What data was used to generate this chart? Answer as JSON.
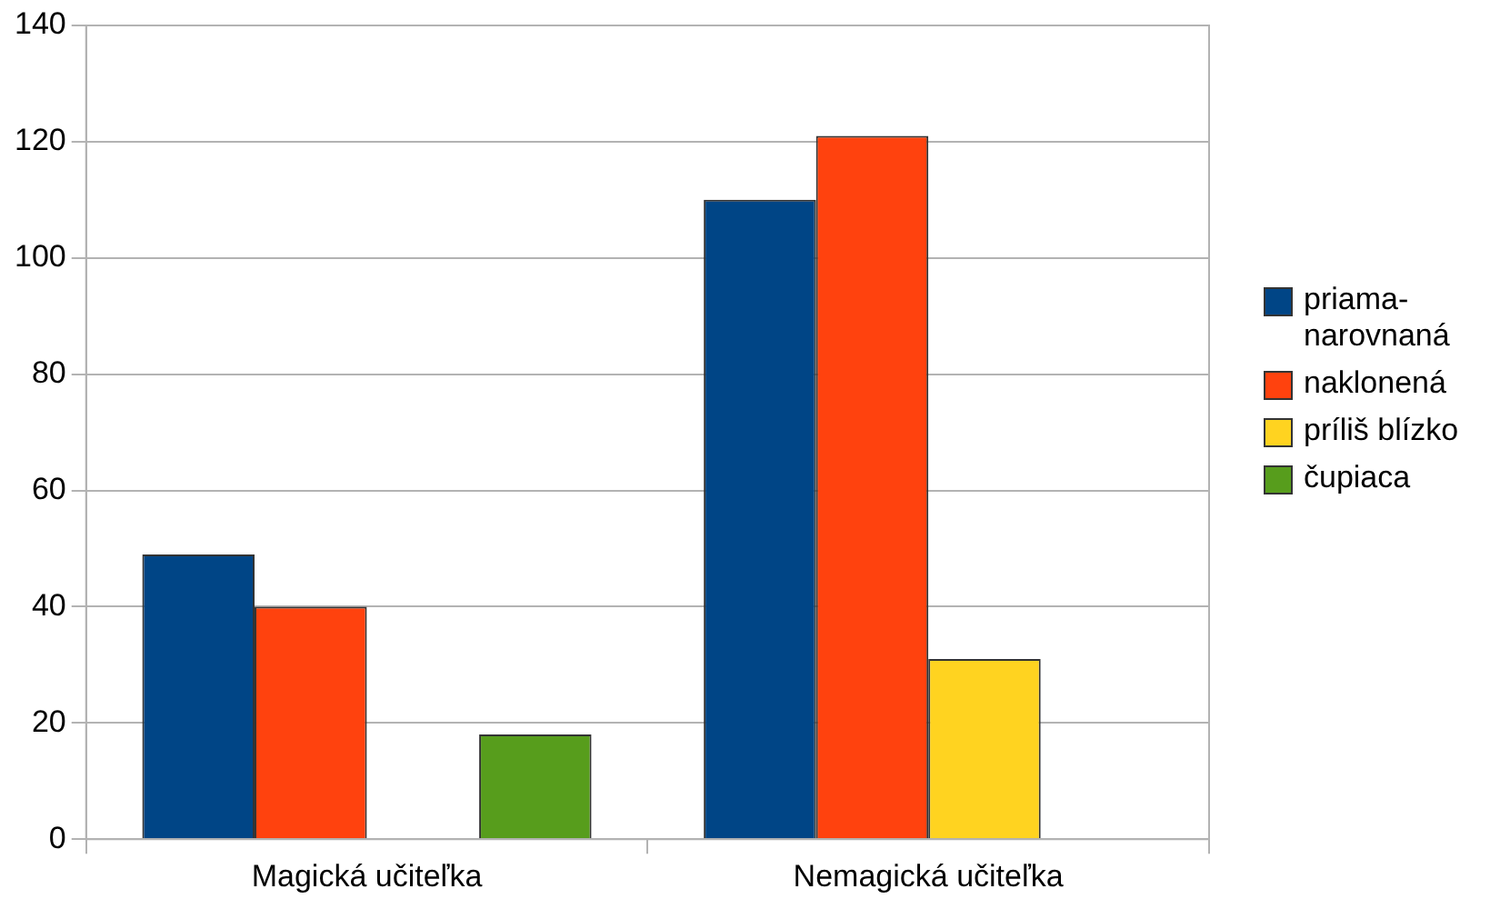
{
  "chart_data": {
    "type": "bar",
    "categories": [
      "Magická učiteľka",
      "Nemagická učiteľka"
    ],
    "series": [
      {
        "name": "priama-narovnaná",
        "color": "#004586",
        "values": [
          49,
          110
        ]
      },
      {
        "name": "naklonená",
        "color": "#ff420e",
        "values": [
          40,
          121
        ]
      },
      {
        "name": "príliš blízko",
        "color": "#ffd320",
        "values": [
          null,
          31
        ]
      },
      {
        "name": "čupiaca",
        "color": "#579d1c",
        "values": [
          18,
          null
        ]
      }
    ],
    "ylim": [
      0,
      140
    ],
    "yticks": [
      0,
      20,
      40,
      60,
      80,
      100,
      120,
      140
    ],
    "grid": "y",
    "legend": "right"
  }
}
